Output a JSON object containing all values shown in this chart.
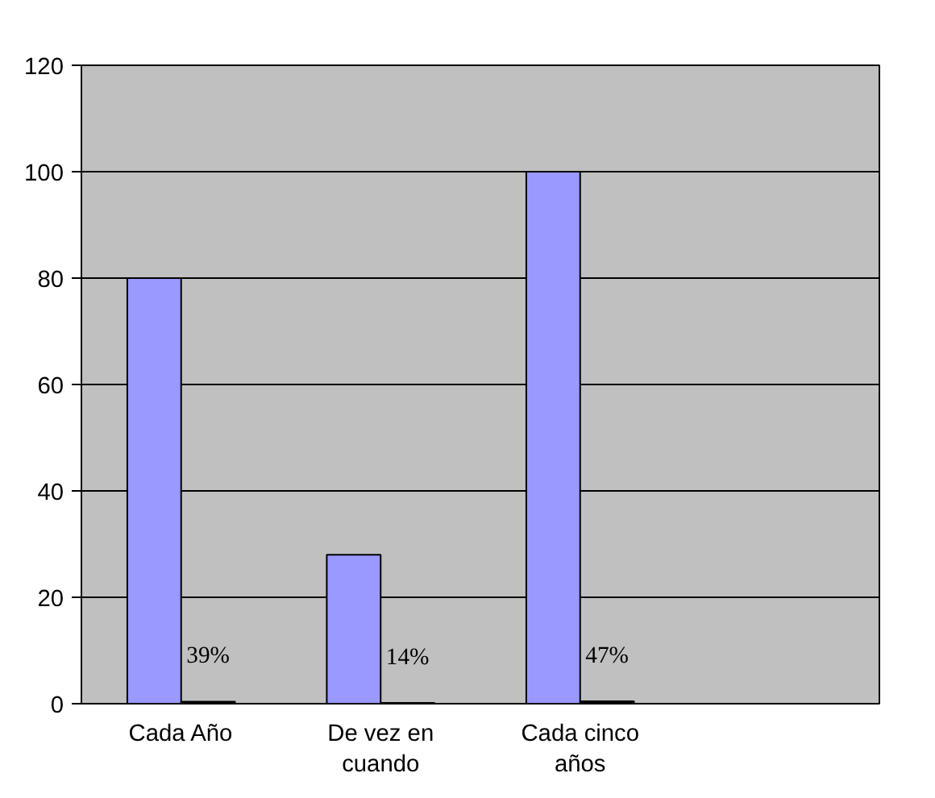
{
  "chart_data": {
    "type": "bar",
    "categories": [
      "Cada Año",
      "De vez en cuando",
      "Cada cinco años",
      null
    ],
    "series": [
      {
        "color": "#9999ff",
        "values": [
          80,
          28,
          100,
          null
        ]
      },
      {
        "color": "#000000",
        "values": [
          0.39,
          0.14,
          0.47,
          null
        ],
        "value_labels": [
          "39%",
          "14%",
          "47%",
          null
        ]
      }
    ],
    "ylim": [
      0,
      120
    ],
    "yticks": [
      0,
      20,
      40,
      60,
      80,
      100,
      120
    ],
    "grid": "y"
  }
}
